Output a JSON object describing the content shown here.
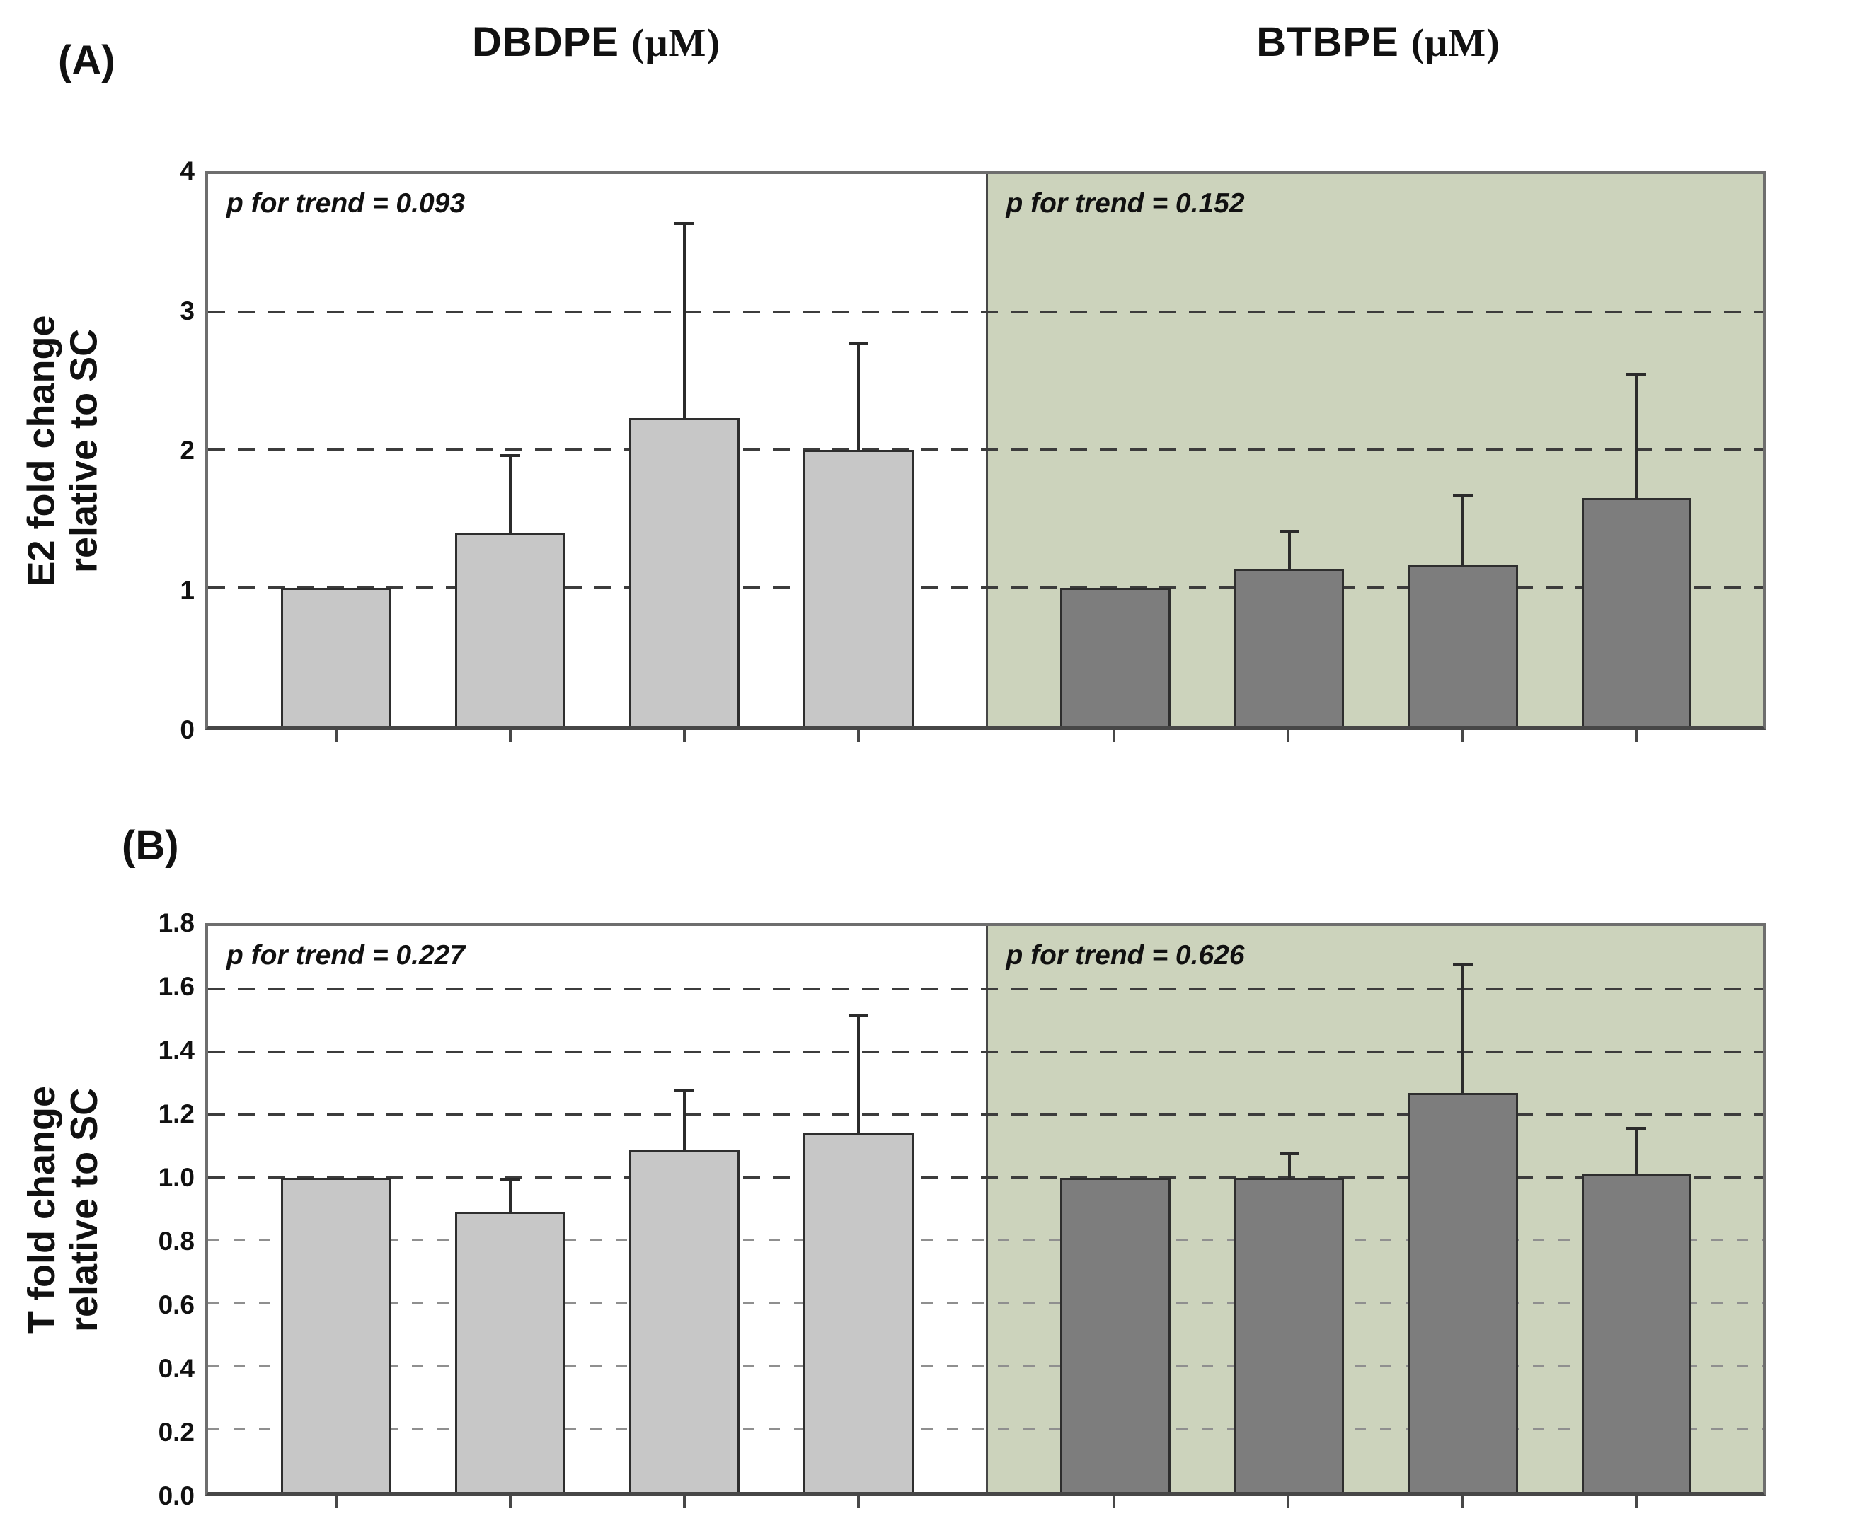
{
  "figure": {
    "panel_a_label": "(A)",
    "panel_b_label": "(B)",
    "col_titles": [
      {
        "name": "DBDPE",
        "unit": "(μM)"
      },
      {
        "name": "BTBPE",
        "unit": "(μM)"
      }
    ]
  },
  "colors": {
    "light_bar": "#c7c7c7",
    "dark_bar": "#7d7d7d",
    "green_bg": "#ccd3bc",
    "white_bg": "#ffffff",
    "bar_border": "#2e2e2e",
    "error_bar": "#2b2b2b",
    "grid_strong": "#3c3c3c",
    "grid_light": "#8f8f8f",
    "frame": "#6e6e6e",
    "axis": "#474747"
  },
  "chart_data": [
    {
      "type": "bar",
      "panel_label": "(A)",
      "ylabel_lines": [
        "E2 fold change",
        "relative to SC"
      ],
      "ylim": [
        0,
        4
      ],
      "grid": "dashed-horizontal",
      "legend": "none",
      "x_tick_labels": "none",
      "yticks": [
        {
          "v": 4,
          "label": "4",
          "grid": "none"
        },
        {
          "v": 3,
          "label": "3",
          "grid": "strong"
        },
        {
          "v": 2,
          "label": "2",
          "grid": "strong"
        },
        {
          "v": 1,
          "label": "1",
          "grid": "strong"
        },
        {
          "v": 0,
          "label": "0",
          "grid": "none"
        }
      ],
      "groups": [
        {
          "title": "DBDPE (μM)",
          "p_label": "p for trend = 0.093",
          "background": "#ffffff",
          "bar_fill": "#c7c7c7",
          "values": [
            1.0,
            1.4,
            2.23,
            2.0
          ],
          "error_plus": [
            0,
            0.57,
            1.42,
            0.78
          ]
        },
        {
          "title": "BTBPE (μM)",
          "p_label": "p for trend = 0.152",
          "background": "#ccd3bc",
          "bar_fill": "#7d7d7d",
          "values": [
            1.0,
            1.14,
            1.17,
            1.65
          ],
          "error_plus": [
            0,
            0.28,
            0.51,
            0.91
          ]
        }
      ]
    },
    {
      "type": "bar",
      "panel_label": "(B)",
      "ylabel_lines": [
        "T fold change",
        "relative to SC"
      ],
      "ylim": [
        0,
        1.8
      ],
      "grid": "dashed-horizontal",
      "legend": "none",
      "x_tick_labels": "none",
      "yticks": [
        {
          "v": 1.8,
          "label": "1.8",
          "grid": "none"
        },
        {
          "v": 1.6,
          "label": "1.6",
          "grid": "strong"
        },
        {
          "v": 1.4,
          "label": "1.4",
          "grid": "strong"
        },
        {
          "v": 1.2,
          "label": "1.2",
          "grid": "strong"
        },
        {
          "v": 1.0,
          "label": "1.0",
          "grid": "strong"
        },
        {
          "v": 0.8,
          "label": "0.8",
          "grid": "light"
        },
        {
          "v": 0.6,
          "label": "0.6",
          "grid": "light"
        },
        {
          "v": 0.4,
          "label": "0.4",
          "grid": "light"
        },
        {
          "v": 0.2,
          "label": "0.2",
          "grid": "light"
        },
        {
          "v": 0.0,
          "label": "0.0",
          "grid": "none"
        }
      ],
      "groups": [
        {
          "title": "DBDPE (μM)",
          "p_label": "p for trend = 0.227",
          "background": "#ffffff",
          "bar_fill": "#c7c7c7",
          "values": [
            1.0,
            0.89,
            1.09,
            1.14
          ],
          "error_plus": [
            0,
            0.11,
            0.19,
            0.38
          ]
        },
        {
          "title": "BTBPE (μM)",
          "p_label": "p for trend = 0.626",
          "background": "#ccd3bc",
          "bar_fill": "#7d7d7d",
          "values": [
            1.0,
            1.0,
            1.27,
            1.01
          ],
          "error_plus": [
            0,
            0.08,
            0.41,
            0.15
          ]
        }
      ]
    }
  ]
}
